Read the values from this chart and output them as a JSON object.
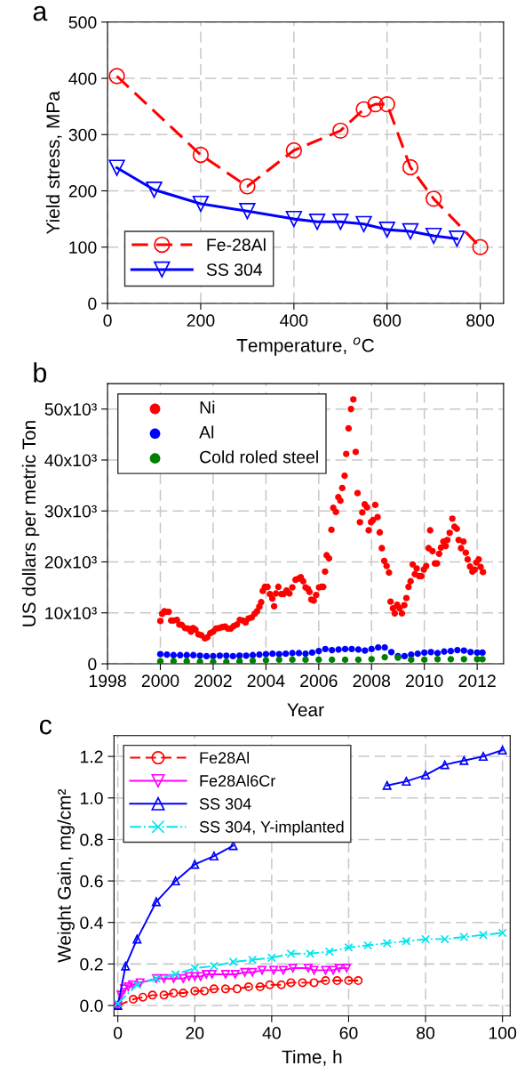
{
  "chart_data": [
    {
      "type": "line",
      "title": "a",
      "xlabel": "Temperature, $^{o}$C",
      "ylabel": "Yield stress, MPa",
      "xlim": [
        0,
        850
      ],
      "xticks": [
        0,
        200,
        400,
        600,
        800
      ],
      "ylim": [
        0,
        500
      ],
      "yticks": [
        0,
        100,
        200,
        300,
        400,
        500
      ],
      "grid": true,
      "legend": "bottom left",
      "series": [
        {
          "name": "Fe-28Al",
          "color": "#ff0000",
          "marker": "circle",
          "line_style": "dashed",
          "x": [
            20,
            200,
            300,
            400,
            500,
            550,
            575,
            600,
            650,
            700,
            800
          ],
          "values": [
            404,
            264,
            208,
            272,
            307,
            345,
            354,
            354,
            242,
            186,
            100
          ]
        },
        {
          "name": "SS 304",
          "color": "#0000ff",
          "marker": "triangle_down",
          "line_style": "solid",
          "x": [
            20,
            100,
            200,
            300,
            400,
            450,
            500,
            550,
            600,
            650,
            700,
            750
          ],
          "values": [
            241,
            202,
            177,
            164,
            150,
            145,
            145,
            141,
            131,
            128,
            120,
            115
          ]
        }
      ]
    },
    {
      "type": "scatter",
      "title": "b",
      "xlabel": "Year",
      "ylabel": "US dollars per metric Ton",
      "xlim": [
        1998,
        2013
      ],
      "xticks": [
        1998,
        2000,
        2002,
        2004,
        2006,
        2008,
        2010,
        2012
      ],
      "ylim": [
        0,
        55000
      ],
      "yticks": [
        0,
        {
          "value": 10000,
          "label": "10x10³"
        },
        {
          "value": 20000,
          "label": "20x10³"
        },
        {
          "value": 30000,
          "label": "30x10³"
        },
        {
          "value": 40000,
          "label": "40x10³"
        },
        {
          "value": 50000,
          "label": "50x10³"
        }
      ],
      "grid": true,
      "legend": "top left",
      "marker": "circle",
      "series": [
        {
          "name": "Ni",
          "color": "#ff0000",
          "x": [
            2000.0,
            2000.07,
            2000.15,
            2000.23,
            2000.32,
            2000.41,
            2000.5,
            2000.63,
            2000.72,
            2000.82,
            2000.94,
            2001.05,
            2001.16,
            2001.24,
            2001.33,
            2001.44,
            2001.55,
            2001.69,
            2001.78,
            2001.89,
            2002.0,
            2002.11,
            2002.22,
            2002.34,
            2002.45,
            2002.56,
            2002.67,
            2002.78,
            2002.9,
            2003.01,
            2003.12,
            2003.23,
            2003.34,
            2003.46,
            2003.57,
            2003.66,
            2003.75,
            2003.82,
            2003.88,
            2003.96,
            2004.06,
            2004.15,
            2004.24,
            2004.31,
            2004.38,
            2004.47,
            2004.58,
            2004.67,
            2004.78,
            2004.89,
            2005.0,
            2005.12,
            2005.23,
            2005.32,
            2005.41,
            2005.5,
            2005.59,
            2005.65,
            2005.72,
            2005.81,
            2005.9,
            2006.01,
            2006.1,
            2006.17,
            2006.24,
            2006.3,
            2006.39,
            2006.48,
            2006.55,
            2006.65,
            2006.74,
            2006.82,
            2006.89,
            2006.98,
            2007.04,
            2007.13,
            2007.22,
            2007.31,
            2007.4,
            2007.47,
            2007.56,
            2007.65,
            2007.74,
            2007.83,
            2007.89,
            2007.98,
            2008.05,
            2008.14,
            2008.23,
            2008.31,
            2008.39,
            2008.48,
            2008.57,
            2008.66,
            2008.72,
            2008.81,
            2008.88,
            2008.97,
            2009.06,
            2009.15,
            2009.24,
            2009.32,
            2009.4,
            2009.48,
            2009.56,
            2009.64,
            2009.71,
            2009.8,
            2009.89,
            2009.98,
            2010.07,
            2010.16,
            2010.22,
            2010.31,
            2010.4,
            2010.48,
            2010.56,
            2010.63,
            2010.72,
            2010.81,
            2010.87,
            2010.96,
            2011.06,
            2011.14,
            2011.23,
            2011.3,
            2011.39,
            2011.48,
            2011.57,
            2011.64,
            2011.73,
            2011.82,
            2011.91,
            2011.97,
            2012.06,
            2012.13,
            2012.22
          ],
          "values": [
            8400,
            9800,
            10300,
            10200,
            10200,
            8500,
            8500,
            8600,
            7700,
            7600,
            7000,
            6900,
            6300,
            7000,
            6700,
            5800,
            5600,
            5000,
            5200,
            6000,
            6300,
            6900,
            7000,
            7200,
            7300,
            6900,
            6900,
            7400,
            7700,
            8600,
            8500,
            8100,
            8900,
            9100,
            9800,
            10300,
            11200,
            12100,
            14300,
            15100,
            15100,
            13700,
            12800,
            11300,
            13800,
            15100,
            13700,
            13700,
            14400,
            13800,
            15000,
            16500,
            16700,
            17000,
            16200,
            15000,
            14700,
            14100,
            12600,
            12400,
            13500,
            15000,
            15100,
            15100,
            18100,
            21300,
            20700,
            26300,
            30600,
            29800,
            32700,
            32000,
            34500,
            36900,
            41200,
            46200,
            50000,
            51900,
            41600,
            33500,
            27800,
            29700,
            31300,
            30700,
            26200,
            27800,
            28200,
            31200,
            28800,
            25800,
            22700,
            20200,
            19200,
            17900,
            12200,
            10900,
            9900,
            11600,
            10900,
            9900,
            11500,
            12900,
            15100,
            16200,
            19500,
            17600,
            18700,
            17200,
            17200,
            18500,
            19200,
            22700,
            26200,
            22100,
            19700,
            19700,
            21600,
            22800,
            24000,
            23100,
            24300,
            25700,
            28500,
            26900,
            26500,
            24300,
            22700,
            24000,
            21800,
            20500,
            19100,
            18100,
            18500,
            19900,
            20500,
            19000,
            18000
          ]
        },
        {
          "name": "Al",
          "color": "#0000ff",
          "x": [
            2000.0,
            2000.25,
            2000.5,
            2000.75,
            2001.0,
            2001.25,
            2001.5,
            2001.75,
            2002.0,
            2002.25,
            2002.5,
            2002.75,
            2003.0,
            2003.25,
            2003.5,
            2003.75,
            2004.0,
            2004.25,
            2004.5,
            2004.75,
            2005.0,
            2005.25,
            2005.5,
            2005.75,
            2006.0,
            2006.25,
            2006.5,
            2006.75,
            2007.0,
            2007.25,
            2007.5,
            2007.75,
            2008.0,
            2008.25,
            2008.5,
            2008.75,
            2009.0,
            2009.25,
            2009.5,
            2009.75,
            2010.0,
            2010.25,
            2010.5,
            2010.75,
            2011.0,
            2011.25,
            2011.5,
            2011.75,
            2012.0,
            2012.2
          ],
          "values": [
            1900,
            1800,
            1700,
            1700,
            1700,
            1700,
            1600,
            1500,
            1500,
            1600,
            1600,
            1500,
            1600,
            1600,
            1700,
            1800,
            1900,
            2000,
            1900,
            2000,
            2100,
            2100,
            2000,
            2200,
            2500,
            2900,
            2700,
            2800,
            2900,
            2900,
            2800,
            2600,
            2900,
            3200,
            3200,
            2300,
            1500,
            1500,
            1800,
            2000,
            2200,
            2300,
            2100,
            2400,
            2500,
            2700,
            2600,
            2300,
            2200,
            2200
          ]
        },
        {
          "name": "Cold roled steel",
          "color": "#008000",
          "x": [
            2000.0,
            2000.5,
            2001.0,
            2001.5,
            2002.0,
            2002.5,
            2003.0,
            2003.5,
            2004.0,
            2004.5,
            2005.0,
            2005.5,
            2006.0,
            2006.5,
            2007.0,
            2007.5,
            2008.0,
            2008.5,
            2009.0,
            2009.5,
            2010.0,
            2010.5,
            2011.0,
            2011.5,
            2012.0,
            2012.2
          ],
          "values": [
            500,
            500,
            500,
            400,
            400,
            400,
            500,
            600,
            700,
            800,
            800,
            800,
            800,
            800,
            800,
            800,
            900,
            1300,
            1200,
            800,
            800,
            900,
            900,
            900,
            900,
            900
          ]
        }
      ]
    },
    {
      "type": "line",
      "title": "c",
      "xlabel": "Time, h",
      "ylabel": "Weight Gain, mg/cm²",
      "xlim": [
        -1,
        102
      ],
      "xticks": [
        0,
        20,
        40,
        60,
        80,
        100
      ],
      "ylim": [
        -0.05,
        1.3
      ],
      "yticks": [
        {
          "value": 0,
          "label": "0.0"
        },
        0.2,
        0.4,
        0.6,
        0.8,
        {
          "value": 1,
          "label": "1.0"
        },
        1.2
      ],
      "grid": true,
      "legend": "top left",
      "series": [
        {
          "name": "Fe28Al",
          "color": "#ff0000",
          "marker": "circle",
          "line_style": "dashed",
          "x": [
            0,
            4,
            6.5,
            9,
            12,
            14.5,
            17,
            20,
            22.5,
            25,
            28,
            31,
            34,
            37,
            39.5,
            42.5,
            45,
            48,
            51,
            54,
            57,
            60,
            62.5
          ],
          "values": [
            0,
            0.03,
            0.04,
            0.05,
            0.05,
            0.06,
            0.06,
            0.07,
            0.07,
            0.08,
            0.08,
            0.08,
            0.09,
            0.09,
            0.1,
            0.1,
            0.11,
            0.11,
            0.11,
            0.12,
            0.12,
            0.12,
            0.12
          ]
        },
        {
          "name": "Fe28Al6Cr",
          "color": "#ff00ff",
          "marker": "triangle_down",
          "line_style": "solid",
          "x": [
            0,
            0.8,
            1.7,
            2.7,
            3.8,
            5.8,
            10,
            12,
            14.5,
            17,
            18.5,
            20,
            21.5,
            23,
            24.5,
            28,
            30.5,
            33,
            35,
            37.5,
            40.5,
            43,
            45.5,
            49.5,
            51,
            54,
            56,
            57.5,
            59.5
          ],
          "values": [
            0,
            0.05,
            0.08,
            0.09,
            0.1,
            0.11,
            0.13,
            0.13,
            0.13,
            0.13,
            0.14,
            0.14,
            0.14,
            0.15,
            0.15,
            0.15,
            0.15,
            0.16,
            0.16,
            0.17,
            0.17,
            0.17,
            0.18,
            0.18,
            0.17,
            0.17,
            0.17,
            0.18,
            0.18
          ]
        },
        {
          "name": "SS 304",
          "color": "#0000ff",
          "marker": "triangle",
          "line_style": "solid",
          "x": [
            0,
            2,
            5,
            10,
            15,
            20,
            25,
            30,
            35,
            40,
            45,
            50,
            55,
            60,
            65,
            70,
            75,
            80,
            85,
            90,
            95,
            100
          ],
          "values": [
            0,
            0.19,
            0.32,
            0.5,
            0.6,
            0.68,
            0.72,
            0.77,
            null,
            null,
            null,
            null,
            null,
            null,
            null,
            1.06,
            1.08,
            1.11,
            1.16,
            1.18,
            1.2,
            1.23
          ]
        },
        {
          "name": "SS 304, Y-implanted",
          "color": "#00e5ee",
          "marker": "cross",
          "line_style": "dashdot",
          "x": [
            0,
            5,
            10,
            15,
            20,
            25,
            30,
            35,
            40,
            45,
            50,
            55,
            60,
            65,
            70,
            75,
            80,
            85,
            90,
            95,
            100
          ],
          "values": [
            0.01,
            0.1,
            0.13,
            0.15,
            0.18,
            0.19,
            0.21,
            0.22,
            0.23,
            0.25,
            0.25,
            0.26,
            0.28,
            0.29,
            0.3,
            0.31,
            0.32,
            0.32,
            0.33,
            0.34,
            0.35
          ]
        }
      ]
    }
  ]
}
